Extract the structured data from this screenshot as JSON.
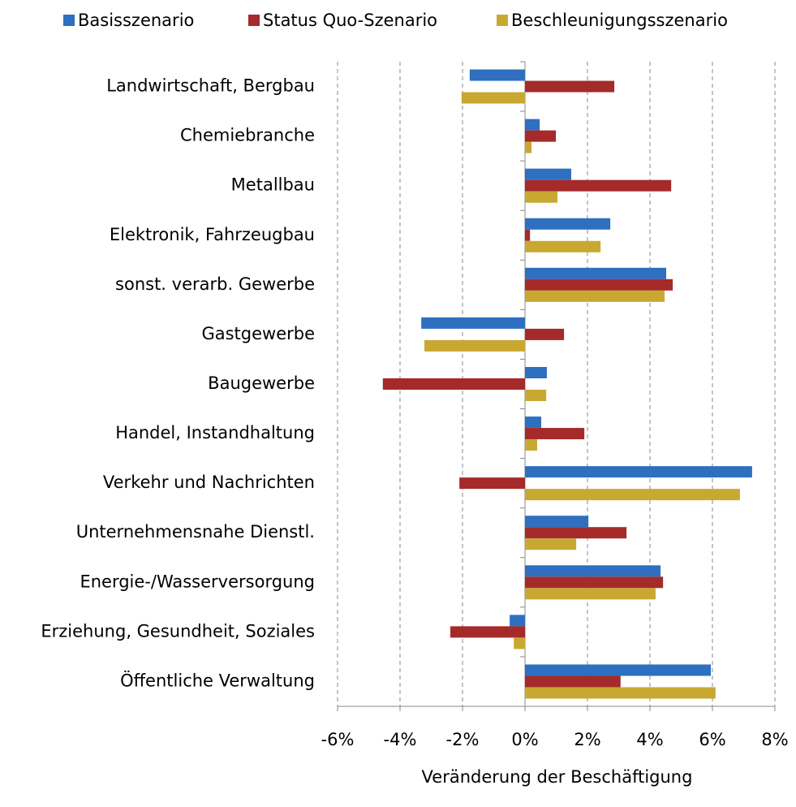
{
  "chart_data": {
    "type": "hbar",
    "xlabel": "Veränderung der Beschäftigung",
    "categories": [
      "Landwirtschaft, Bergbau",
      "Chemiebranche",
      "Metallbau",
      "Elektronik, Fahrzeugbau",
      "sonst. verarb. Gewerbe",
      "Gastgewerbe",
      "Baugewerbe",
      "Handel, Instandhaltung",
      "Verkehr und Nachrichten",
      "Unternehmensnahe Dienstl.",
      "Energie-/Wasserversorgung",
      "Erziehung, Gesundheit, Soziales",
      "Öffentliche Verwaltung"
    ],
    "series": [
      {
        "name": "Basisszenario",
        "color": "#2e6fc0",
        "values": [
          -1.77,
          0.47,
          1.48,
          2.73,
          4.52,
          -3.32,
          0.7,
          0.52,
          7.27,
          2.03,
          4.34,
          -0.49,
          5.95
        ]
      },
      {
        "name": "Status Quo-Szenario",
        "color": "#a52a2a",
        "values": [
          2.86,
          0.99,
          4.68,
          0.16,
          4.73,
          1.25,
          -4.55,
          1.9,
          -2.1,
          3.25,
          4.42,
          -2.39,
          3.06
        ]
      },
      {
        "name": "Beschleunigungsszenario",
        "color": "#c9a832",
        "values": [
          -2.03,
          0.21,
          1.04,
          2.42,
          4.47,
          -3.22,
          0.68,
          0.39,
          6.88,
          1.64,
          4.18,
          -0.36,
          6.1
        ]
      }
    ],
    "xlim": [
      -6,
      8
    ],
    "xticks": [
      {
        "value": -6,
        "label": "-6%"
      },
      {
        "value": -4,
        "label": "-4%"
      },
      {
        "value": -2,
        "label": "-2%"
      },
      {
        "value": 0,
        "label": "0%"
      },
      {
        "value": 2,
        "label": "2%"
      },
      {
        "value": 4,
        "label": "4%"
      },
      {
        "value": 6,
        "label": "6%"
      },
      {
        "value": 8,
        "label": "8%"
      }
    ],
    "grid": true,
    "legend": "top"
  }
}
